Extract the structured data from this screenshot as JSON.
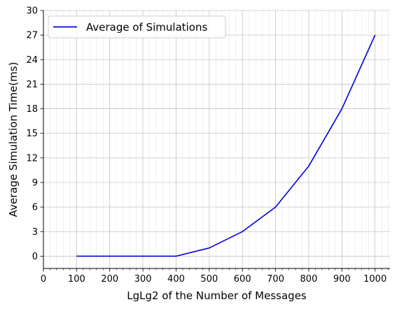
{
  "chart_data": {
    "type": "line",
    "xlabel": "LgLg2 of the Number of Messages",
    "ylabel": "Average Simulation Time(ms)",
    "xlim": [
      0,
      1045
    ],
    "ylim": [
      -1.5,
      30
    ],
    "x_ticks": [
      0,
      100,
      200,
      300,
      400,
      500,
      600,
      700,
      800,
      900,
      1000
    ],
    "x_minor_step": 20,
    "y_ticks": [
      0,
      3,
      6,
      9,
      12,
      15,
      18,
      21,
      24,
      27,
      30
    ],
    "grid": true,
    "legend_position": "upper-left",
    "series": [
      {
        "name": "Average of Simulations",
        "color": "#0000dd",
        "x": [
          100,
          200,
          300,
          400,
          500,
          600,
          700,
          800,
          900,
          1000
        ],
        "y": [
          0,
          0,
          0,
          0,
          1,
          3,
          6,
          11,
          18,
          27
        ]
      }
    ]
  }
}
